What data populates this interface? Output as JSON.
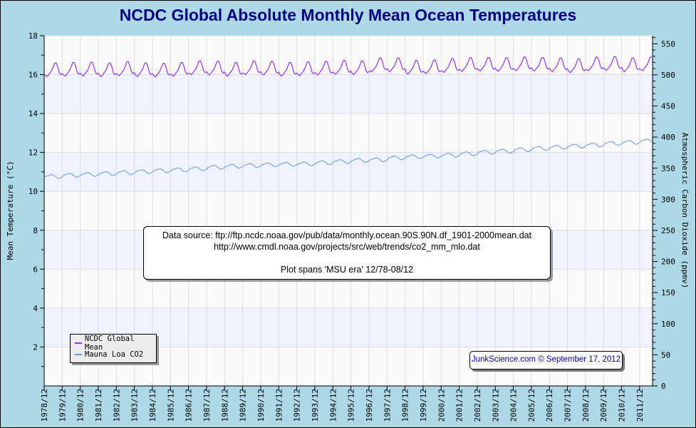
{
  "chart_data": {
    "type": "line",
    "title": "NCDC Global Absolute Monthly Mean Ocean Temperatures",
    "ylabel": "Mean Temperature (°C)",
    "y2label": "Atmospheric Carbon Dioxide (ppmv)",
    "xlabel": "",
    "ylim": [
      0,
      18
    ],
    "y2lim": [
      0,
      563
    ],
    "yticks": [
      "2",
      "4",
      "6",
      "8",
      "10",
      "12",
      "14",
      "16",
      "18"
    ],
    "y2ticks": [
      "0",
      "50",
      "100",
      "150",
      "200",
      "250",
      "300",
      "350",
      "400",
      "450",
      "500",
      "550"
    ],
    "xticks": [
      "1978/12",
      "1979/12",
      "1980/12",
      "1981/12",
      "1982/12",
      "1983/12",
      "1984/12",
      "1985/12",
      "1986/12",
      "1987/12",
      "1988/12",
      "1989/12",
      "1990/12",
      "1991/12",
      "1992/12",
      "1993/12",
      "1994/12",
      "1995/12",
      "1996/12",
      "1997/12",
      "1998/12",
      "1999/12",
      "2000/12",
      "2001/12",
      "2002/12",
      "2003/12",
      "2004/12",
      "2005/12",
      "2006/12",
      "2007/12",
      "2008/12",
      "2009/12",
      "2010/12",
      "2011/12"
    ],
    "x_range": [
      "1978/12",
      "2012/08"
    ],
    "x_step": "monthly",
    "grid": true,
    "legend_position": "bottom-left",
    "colors": {
      "temp": "#9b30ff",
      "co2": "#6495ed",
      "band": "#eef3fe",
      "plot_bg": "#fafafa",
      "grid": "#dddddd",
      "title": "#000080"
    },
    "series": [
      {
        "name": "NCDC Global Mean",
        "axis": "left",
        "values": [
          16.02,
          15.95,
          15.9,
          16.0,
          16.1,
          16.2,
          16.4,
          16.6,
          16.6,
          16.4,
          16.1,
          16.0,
          16.05,
          15.97,
          15.92,
          16.02,
          16.12,
          16.22,
          16.42,
          16.62,
          16.62,
          16.42,
          16.12,
          16.02,
          16.07,
          15.98,
          15.93,
          16.03,
          16.13,
          16.23,
          16.43,
          16.63,
          16.63,
          16.43,
          16.13,
          16.03,
          16.08,
          15.95,
          15.9,
          16.0,
          16.1,
          16.2,
          16.4,
          16.6,
          16.6,
          16.4,
          16.1,
          16.0,
          16.05,
          16.0,
          15.95,
          16.05,
          16.15,
          16.25,
          16.45,
          16.65,
          16.65,
          16.45,
          16.15,
          16.05,
          16.1,
          15.95,
          15.9,
          16.0,
          16.1,
          16.2,
          16.4,
          16.6,
          16.6,
          16.4,
          16.1,
          16.0,
          16.05,
          15.93,
          15.88,
          15.98,
          16.08,
          16.18,
          16.38,
          16.58,
          16.58,
          16.38,
          16.08,
          15.98,
          16.03,
          15.97,
          15.92,
          16.02,
          16.12,
          16.22,
          16.42,
          16.62,
          16.62,
          16.42,
          16.12,
          16.02,
          16.07,
          16.05,
          16.0,
          16.1,
          16.2,
          16.3,
          16.5,
          16.7,
          16.7,
          16.5,
          16.2,
          16.1,
          16.15,
          16.03,
          15.98,
          16.08,
          16.18,
          16.28,
          16.48,
          16.68,
          16.68,
          16.48,
          16.18,
          16.08,
          16.13,
          15.97,
          15.92,
          16.02,
          16.12,
          16.22,
          16.42,
          16.62,
          16.62,
          16.42,
          16.12,
          16.02,
          16.07,
          16.05,
          16.0,
          16.1,
          16.2,
          16.3,
          16.5,
          16.7,
          16.7,
          16.5,
          16.2,
          16.1,
          16.15,
          16.03,
          15.98,
          16.08,
          16.18,
          16.28,
          16.48,
          16.68,
          16.68,
          16.48,
          16.18,
          16.08,
          16.13,
          15.97,
          15.92,
          16.02,
          16.12,
          16.22,
          16.42,
          16.62,
          16.62,
          16.42,
          16.12,
          16.02,
          16.07,
          16.0,
          15.95,
          16.05,
          16.15,
          16.25,
          16.45,
          16.65,
          16.65,
          16.45,
          16.15,
          16.05,
          16.1,
          16.03,
          15.98,
          16.08,
          16.18,
          16.28,
          16.48,
          16.68,
          16.68,
          16.48,
          16.18,
          16.08,
          16.13,
          16.07,
          16.02,
          16.12,
          16.22,
          16.32,
          16.52,
          16.72,
          16.72,
          16.52,
          16.22,
          16.12,
          16.17,
          16.05,
          16.0,
          16.1,
          16.2,
          16.3,
          16.5,
          16.7,
          16.7,
          16.5,
          16.2,
          16.1,
          16.15,
          16.2,
          16.15,
          16.25,
          16.35,
          16.45,
          16.65,
          16.85,
          16.85,
          16.65,
          16.35,
          16.25,
          16.3,
          16.2,
          16.15,
          16.25,
          16.35,
          16.45,
          16.65,
          16.85,
          16.85,
          16.65,
          16.35,
          16.25,
          16.3,
          16.07,
          16.02,
          16.12,
          16.22,
          16.32,
          16.52,
          16.72,
          16.72,
          16.52,
          16.22,
          16.12,
          16.17,
          16.1,
          16.05,
          16.15,
          16.25,
          16.35,
          16.55,
          16.75,
          16.75,
          16.55,
          16.25,
          16.15,
          16.2,
          16.17,
          16.12,
          16.22,
          16.32,
          16.42,
          16.62,
          16.82,
          16.82,
          16.62,
          16.32,
          16.22,
          16.27,
          16.22,
          16.17,
          16.27,
          16.37,
          16.47,
          16.67,
          16.87,
          16.87,
          16.67,
          16.37,
          16.27,
          16.32,
          16.23,
          16.18,
          16.28,
          16.38,
          16.48,
          16.68,
          16.88,
          16.88,
          16.68,
          16.38,
          16.28,
          16.33,
          16.22,
          16.17,
          16.27,
          16.37,
          16.47,
          16.67,
          16.87,
          16.87,
          16.67,
          16.37,
          16.27,
          16.32,
          16.25,
          16.2,
          16.3,
          16.4,
          16.5,
          16.7,
          16.9,
          16.9,
          16.7,
          16.4,
          16.3,
          16.35,
          16.23,
          16.18,
          16.28,
          16.38,
          16.48,
          16.68,
          16.88,
          16.88,
          16.68,
          16.38,
          16.28,
          16.33,
          16.2,
          16.15,
          16.25,
          16.35,
          16.45,
          16.65,
          16.85,
          16.85,
          16.65,
          16.35,
          16.25,
          16.3,
          16.15,
          16.1,
          16.2,
          16.3,
          16.4,
          16.6,
          16.8,
          16.8,
          16.6,
          16.3,
          16.2,
          16.25,
          16.25,
          16.2,
          16.3,
          16.4,
          16.5,
          16.7,
          16.9,
          16.9,
          16.7,
          16.4,
          16.3,
          16.35,
          16.27,
          16.22,
          16.32,
          16.42,
          16.52,
          16.72,
          16.92,
          16.92,
          16.72,
          16.42,
          16.32,
          16.37,
          16.2,
          16.15,
          16.25,
          16.35,
          16.45,
          16.65,
          16.85,
          16.85,
          16.65,
          16.35,
          16.25,
          16.3,
          16.25,
          16.2,
          16.3,
          16.4,
          16.5,
          16.7,
          16.9,
          16.9
        ]
      },
      {
        "name": "Mauna Loa CO2",
        "axis": "right",
        "values": [
          335.0,
          336.8,
          337.5,
          338.2,
          339.3,
          339.8,
          339.1,
          337.6,
          335.5,
          333.8,
          333.6,
          334.8,
          335.9,
          338.7,
          339.4,
          340.1,
          341.2,
          341.7,
          341.0,
          339.5,
          337.4,
          335.7,
          335.5,
          336.7,
          337.8,
          340.1,
          340.8,
          341.5,
          342.6,
          343.1,
          342.4,
          340.9,
          338.8,
          337.1,
          336.9,
          338.1,
          339.2,
          341.4,
          342.1,
          342.8,
          343.9,
          344.4,
          343.7,
          342.2,
          340.1,
          338.4,
          338.2,
          339.4,
          340.5,
          343.0,
          343.7,
          344.4,
          345.5,
          346.0,
          345.3,
          343.8,
          341.7,
          340.0,
          339.8,
          341.0,
          342.1,
          344.6,
          345.3,
          346.0,
          347.1,
          347.6,
          346.9,
          345.4,
          343.3,
          341.6,
          341.4,
          342.6,
          343.7,
          346.0,
          346.7,
          347.4,
          348.5,
          349.0,
          348.3,
          346.8,
          344.7,
          343.0,
          342.8,
          344.0,
          345.1,
          347.4,
          348.1,
          348.8,
          349.9,
          350.4,
          349.7,
          348.2,
          346.1,
          344.4,
          344.2,
          345.4,
          346.5,
          349.2,
          349.9,
          350.6,
          351.7,
          352.2,
          351.5,
          350.0,
          347.9,
          346.2,
          346.0,
          347.2,
          348.3,
          351.6,
          352.3,
          353.0,
          354.1,
          354.6,
          353.9,
          352.4,
          350.3,
          348.6,
          348.4,
          349.6,
          350.7,
          353.1,
          353.8,
          354.5,
          355.6,
          356.1,
          355.4,
          353.9,
          351.8,
          350.1,
          349.9,
          351.1,
          352.2,
          354.4,
          355.1,
          355.8,
          356.9,
          357.4,
          356.7,
          355.2,
          353.1,
          351.4,
          351.2,
          352.4,
          353.5,
          355.6,
          356.3,
          357.0,
          358.1,
          358.6,
          357.9,
          356.4,
          354.3,
          352.6,
          352.4,
          353.6,
          354.7,
          356.4,
          357.1,
          357.8,
          358.9,
          359.4,
          358.7,
          357.2,
          355.1,
          353.4,
          353.2,
          354.4,
          355.5,
          357.1,
          357.8,
          358.5,
          359.6,
          360.1,
          359.4,
          357.9,
          355.8,
          354.1,
          353.9,
          355.1,
          356.2,
          358.8,
          359.5,
          360.2,
          361.3,
          361.8,
          361.1,
          359.6,
          357.5,
          355.8,
          355.6,
          356.8,
          357.9,
          360.8,
          361.5,
          362.2,
          363.3,
          363.8,
          363.1,
          361.6,
          359.5,
          357.8,
          357.6,
          358.8,
          359.9,
          362.6,
          363.3,
          364.0,
          365.1,
          365.6,
          364.9,
          363.4,
          361.3,
          359.6,
          359.4,
          360.6,
          361.7,
          363.7,
          364.4,
          365.1,
          366.2,
          366.7,
          366.0,
          364.5,
          362.4,
          360.7,
          360.5,
          361.7,
          362.8,
          366.7,
          367.4,
          368.1,
          369.2,
          369.7,
          369.0,
          367.5,
          365.4,
          363.7,
          363.5,
          364.7,
          365.8,
          368.4,
          369.1,
          369.8,
          370.9,
          371.4,
          370.7,
          369.2,
          367.1,
          365.4,
          365.2,
          366.4,
          367.5,
          369.6,
          370.3,
          371.0,
          372.1,
          372.6,
          371.9,
          370.4,
          368.3,
          366.6,
          366.4,
          367.6,
          368.7,
          371.1,
          371.8,
          372.5,
          373.6,
          374.1,
          373.4,
          371.9,
          369.8,
          368.1,
          367.9,
          369.1,
          370.2,
          373.2,
          373.9,
          374.6,
          375.7,
          376.2,
          375.5,
          374.0,
          371.9,
          370.2,
          370.0,
          371.2,
          372.3,
          375.8,
          376.5,
          377.2,
          378.3,
          378.8,
          378.1,
          376.6,
          374.5,
          372.8,
          372.6,
          373.8,
          374.9,
          377.5,
          378.2,
          378.9,
          380.0,
          380.5,
          379.8,
          378.3,
          376.2,
          374.5,
          374.3,
          375.5,
          376.6,
          379.8,
          380.5,
          381.2,
          382.3,
          382.8,
          382.1,
          380.6,
          378.5,
          376.8,
          376.6,
          377.8,
          378.9,
          381.9,
          382.6,
          383.3,
          384.4,
          384.9,
          384.2,
          382.7,
          380.6,
          378.9,
          378.7,
          379.9,
          381.0,
          383.8,
          384.5,
          385.2,
          386.3,
          386.8,
          386.1,
          384.6,
          382.5,
          380.8,
          380.6,
          381.8,
          382.9,
          385.6,
          386.3,
          387.0,
          388.1,
          388.6,
          387.9,
          386.4,
          384.3,
          382.6,
          382.4,
          383.6,
          384.7,
          387.4,
          388.1,
          388.8,
          389.9,
          390.4,
          389.7,
          388.2,
          386.1,
          384.4,
          384.2,
          385.4,
          386.5,
          389.9,
          390.6,
          391.3,
          392.4,
          392.9,
          392.2,
          390.7,
          388.6,
          386.9,
          386.7,
          387.9,
          389.0,
          391.6,
          392.3,
          393.0,
          394.1,
          394.6,
          393.9,
          392.4,
          390.3,
          388.6,
          388.4,
          389.6,
          390.7,
          393.8,
          394.5,
          395.2,
          396.3,
          396.8,
          396.1,
          394.6,
          392.5
        ]
      }
    ],
    "annotations": {
      "source_line1": "Data source: ftp://ftp.ncdc.noaa.gov/pub/data/monthly.ocean.90S.90N.df_1901-2000mean.dat",
      "source_line2": "http://www.cmdl.noaa.gov/projects/src/web/trends/co2_mm_mlo.dat",
      "span_note": "Plot spans 'MSU era' 12/78-08/12",
      "credit": "JunkScience.com © September 17, 2012"
    }
  }
}
